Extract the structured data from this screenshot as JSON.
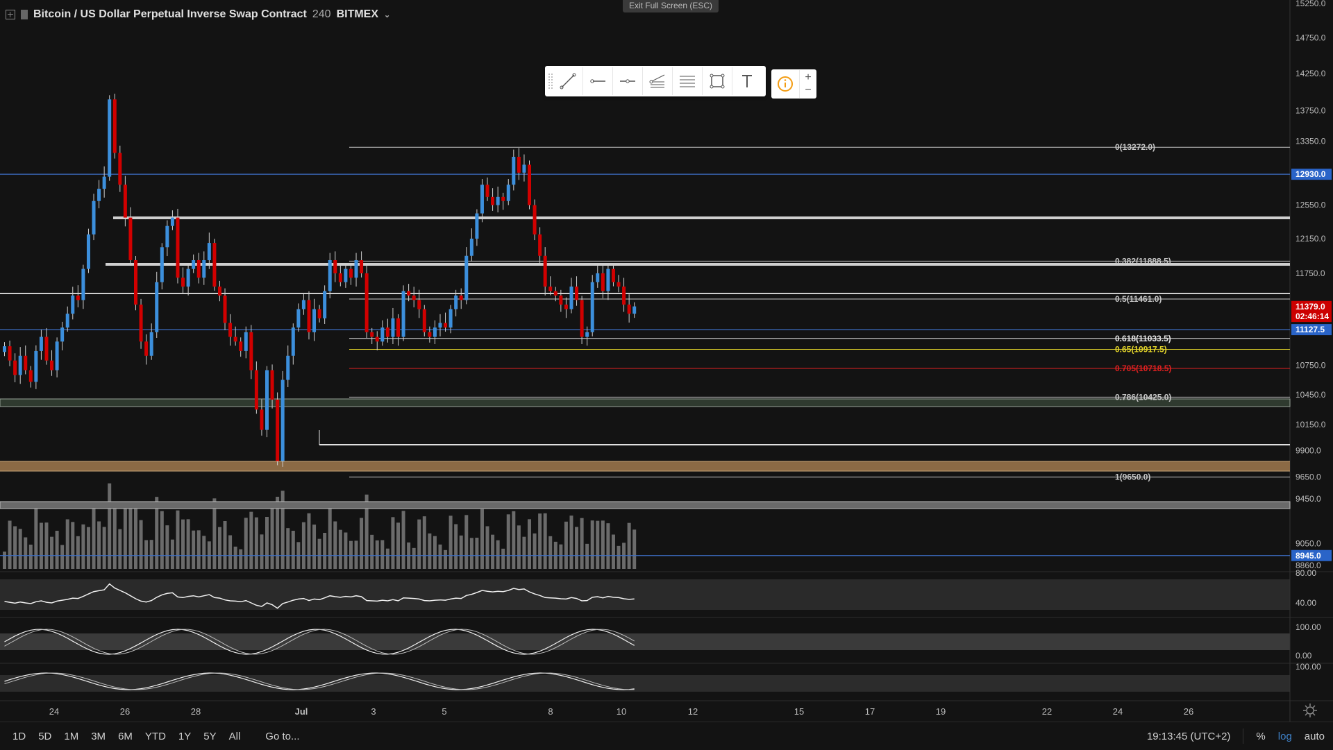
{
  "header": {
    "symbol_title": "Bitcoin / US Dollar Perpetual Inverse Swap Contract",
    "interval": "240",
    "exchange": "BITMEX"
  },
  "exit_fullscreen_label": "Exit Full Screen (ESC)",
  "toolbar": {
    "tools": [
      "trend-line-icon",
      "horizontal-ray-icon",
      "horizontal-line-icon",
      "pitchfork-icon",
      "parallel-channel-icon",
      "rectangle-icon",
      "text-icon"
    ],
    "zoom_in": "+",
    "zoom_out": "−"
  },
  "price_axis": {
    "labels": [
      "15250.0",
      "14750.0",
      "14250.0",
      "13750.0",
      "13350.0",
      "12550.0",
      "12150.0",
      "11750.0",
      "10750.0",
      "10450.0",
      "10150.0",
      "9900.0",
      "9650.0",
      "9450.0",
      "9050.0",
      "8860.0"
    ],
    "badges": [
      {
        "text": "12930.0",
        "color": "#2a64c8",
        "price": 12930
      },
      {
        "text": "11379.0",
        "color": "#cc0000",
        "price": 11379
      },
      {
        "text": "02:46:14",
        "color": "#cc0000",
        "price": 11270
      },
      {
        "text": "11127.5",
        "color": "#2a64c8",
        "price": 11127.5
      },
      {
        "text": "8945.0",
        "color": "#2a64c8",
        "price": 8945
      }
    ]
  },
  "fib_levels": [
    {
      "label": "0(13272.0)",
      "price": 13272,
      "color": "#c8c8c8"
    },
    {
      "label": "0.382(11888.5)",
      "price": 11888.5,
      "color": "#c8c8c8"
    },
    {
      "label": "0.5(11461.0)",
      "price": 11461,
      "color": "#c8c8c8"
    },
    {
      "label": "0.618(11033.5)",
      "price": 11033.5,
      "color": "#e6e6e6"
    },
    {
      "label": "0.65(10917.5)",
      "price": 10917.5,
      "color": "#e5d62a"
    },
    {
      "label": "0.705(10718.5)",
      "price": 10718.5,
      "color": "#e02020"
    },
    {
      "label": "0.786(10425.0)",
      "price": 10425,
      "color": "#c8c8c8"
    },
    {
      "label": "1(9650.0)",
      "price": 9650,
      "color": "#c8c8c8"
    }
  ],
  "horizontal_lines": [
    {
      "price": 12930,
      "color": "#3d6ec4"
    },
    {
      "price": 11127.5,
      "color": "#3d6ec4"
    },
    {
      "price": 8945,
      "color": "#3d6ec4"
    }
  ],
  "indicator_panes": [
    {
      "name": "rsi",
      "labels": [
        "80.00",
        "40.00"
      ]
    },
    {
      "name": "stoch_rsi_1",
      "labels": [
        "100.00",
        "0.00"
      ]
    },
    {
      "name": "stoch_rsi_2",
      "labels": [
        "100.00"
      ]
    }
  ],
  "time_axis": {
    "labels": [
      "24",
      "26",
      "28",
      "Jul",
      "3",
      "5",
      "8",
      "10",
      "12",
      "15",
      "17",
      "19",
      "22",
      "24",
      "26"
    ]
  },
  "bottom_bar": {
    "timeframes": [
      "1D",
      "5D",
      "1M",
      "3M",
      "6M",
      "YTD",
      "1Y",
      "5Y",
      "All"
    ],
    "goto": "Go to...",
    "clock": "19:13:45 (UTC+2)",
    "percent": "%",
    "log": "log",
    "auto": "auto"
  },
  "colors": {
    "background": "#131313",
    "up_candle": "#3c8fdc",
    "down_candle": "#d10000",
    "volume": "#6b6b6b",
    "accent_blue": "#2a64c8"
  },
  "chart_data": {
    "type": "candlestick",
    "title": "",
    "x_labels": [
      "24",
      "26",
      "28",
      "Jul",
      "3",
      "5",
      "8",
      "10",
      "12",
      "15",
      "17",
      "19",
      "22",
      "24",
      "26"
    ],
    "ylim": [
      8860,
      15400
    ],
    "ohlc_close": [
      10950,
      10800,
      10650,
      10850,
      10700,
      10580,
      10900,
      11050,
      10800,
      10700,
      11000,
      11150,
      11300,
      11500,
      11450,
      11800,
      12200,
      12600,
      12750,
      12900,
      13900,
      13200,
      12800,
      12400,
      11900,
      11400,
      11000,
      10850,
      11100,
      11650,
      12050,
      12300,
      12400,
      11700,
      11600,
      11800,
      11900,
      11700,
      11900,
      12100,
      11600,
      11500,
      11200,
      11050,
      11000,
      10900,
      11100,
      10700,
      10300,
      10100,
      10700,
      10400,
      9800,
      10600,
      10850,
      11150,
      11350,
      11450,
      11100,
      11350,
      11250,
      11550,
      11900,
      11750,
      11650,
      11800,
      11700,
      11900,
      11750,
      11100,
      11050,
      11000,
      11150,
      11050,
      11250,
      11050,
      11550,
      11500,
      11450,
      11350,
      11100,
      11050,
      11150,
      11200,
      11150,
      11350,
      11500,
      11450,
      11950,
      12150,
      12450,
      12800,
      12650,
      12550,
      12650,
      12600,
      12800,
      13150,
      12950,
      13050,
      12550,
      12200,
      11950,
      11600,
      11550,
      11500,
      11400,
      11350,
      11600,
      11450,
      11050,
      11100,
      11650,
      11750,
      11550,
      11800,
      11650,
      11600,
      11400,
      11300,
      11380
    ]
  }
}
